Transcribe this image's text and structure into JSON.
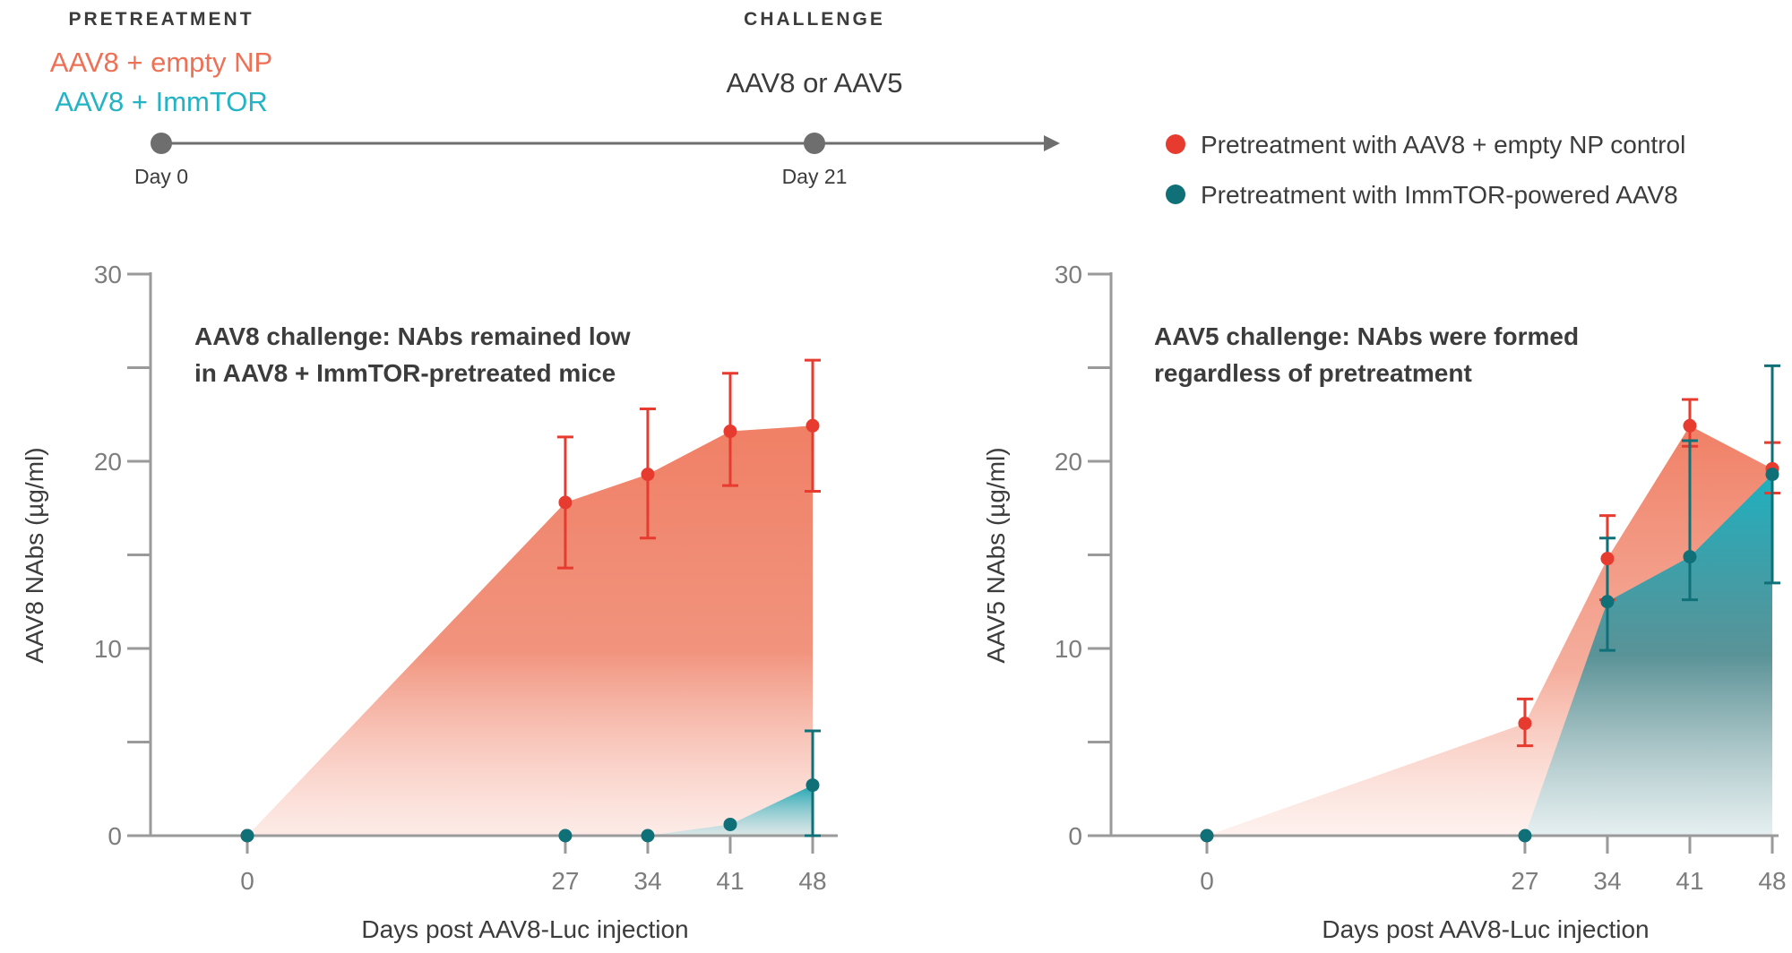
{
  "timeline": {
    "pretreatment_header": "PRETREATMENT",
    "challenge_header": "CHALLENGE",
    "pretreatment_lines": [
      {
        "text": "AAV8 + empty NP",
        "color": "#ee7055"
      },
      {
        "text": "AAV8 + ImmTOR",
        "color": "#22b3c4"
      }
    ],
    "challenge_text": "AAV8 or AAV5",
    "day_labels": [
      "Day 0",
      "Day 21"
    ]
  },
  "legend": [
    {
      "label": "Pretreatment with AAV8 + empty NP control",
      "color": "#e63b2e"
    },
    {
      "label": "Pretreatment with ImmTOR-powered AAV8",
      "color": "#0f7078"
    }
  ],
  "colors": {
    "red_fill": "#f0826a",
    "red_marker": "#e63b2e",
    "teal_fill": "#27b3c0",
    "teal_marker": "#0f7078",
    "axis": "#9a9a9a",
    "text": "#3c3c3c"
  },
  "chart_data": [
    {
      "type": "area",
      "annotation": [
        "AAV8 challenge: NAbs remained low",
        "in AAV8 + ImmTOR-pretreated mice"
      ],
      "xlabel": "Days post AAV8-Luc injection",
      "ylabel": "AAV8 NAbs (µg/ml)",
      "x": [
        0,
        27,
        34,
        41,
        48
      ],
      "x_tick_labels": [
        "0",
        "27",
        "34",
        "41",
        "48"
      ],
      "ylim": [
        0,
        30
      ],
      "y_ticks": [
        0,
        10,
        20,
        30
      ],
      "y_tick_labels": [
        "0",
        "10",
        "20",
        "30"
      ],
      "series": [
        {
          "name": "Pretreatment with AAV8 + empty NP control",
          "color": "#e63b2e",
          "values": [
            0,
            17.8,
            19.3,
            21.6,
            21.9
          ],
          "err_low": [
            null,
            14.3,
            15.9,
            18.7,
            18.4
          ],
          "err_high": [
            null,
            21.3,
            22.8,
            24.7,
            25.4
          ]
        },
        {
          "name": "Pretreatment with ImmTOR-powered AAV8",
          "color": "#0f7078",
          "values": [
            0,
            0,
            0,
            0.6,
            2.7
          ],
          "err_low": [
            null,
            null,
            null,
            null,
            0
          ],
          "err_high": [
            null,
            null,
            null,
            null,
            5.6
          ]
        }
      ]
    },
    {
      "type": "area",
      "annotation": [
        "AAV5 challenge: NAbs were formed",
        "regardless of pretreatment"
      ],
      "xlabel": "Days post AAV8-Luc injection",
      "ylabel": "AAV5 NAbs (µg/ml)",
      "x": [
        0,
        27,
        34,
        41,
        48
      ],
      "x_tick_labels": [
        "0",
        "27",
        "34",
        "41",
        "48"
      ],
      "ylim": [
        0,
        30
      ],
      "y_ticks": [
        0,
        10,
        20,
        30
      ],
      "y_tick_labels": [
        "0",
        "10",
        "20",
        "30"
      ],
      "series": [
        {
          "name": "Pretreatment with AAV8 + empty NP control",
          "color": "#e63b2e",
          "values": [
            0,
            6.0,
            14.8,
            21.9,
            19.6
          ],
          "err_low": [
            null,
            4.8,
            12.6,
            20.8,
            18.3
          ],
          "err_high": [
            null,
            7.3,
            17.1,
            23.3,
            21.0
          ]
        },
        {
          "name": "Pretreatment with ImmTOR-powered AAV8",
          "color": "#0f7078",
          "values": [
            0,
            0,
            12.5,
            14.9,
            19.3
          ],
          "err_low": [
            null,
            null,
            9.9,
            12.6,
            13.5
          ],
          "err_high": [
            null,
            null,
            15.9,
            21.1,
            25.1
          ]
        }
      ]
    }
  ]
}
